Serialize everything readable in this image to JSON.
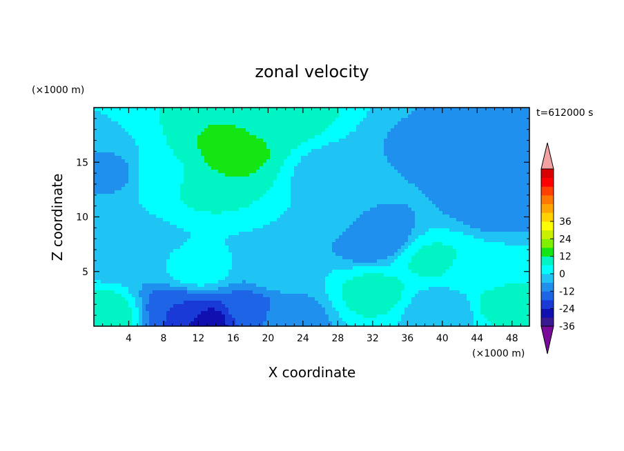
{
  "chart_data": {
    "type": "heatmap",
    "title": "zonal velocity",
    "xlabel": "X coordinate",
    "ylabel": "Z coordinate",
    "x_unit_label": "(×1000 m)",
    "y_unit_label": "(×1000 m)",
    "time_label": "t=612000 s",
    "xlim": [
      0,
      50
    ],
    "ylim": [
      0,
      20
    ],
    "x_ticks": [
      4,
      8,
      12,
      16,
      20,
      24,
      28,
      32,
      36,
      40,
      44,
      48
    ],
    "y_ticks": [
      5,
      10,
      15
    ],
    "colorbar": {
      "min": -42,
      "max": 42,
      "step": 6,
      "tick_labels": [
        "36",
        "24",
        "12",
        "0",
        "-12",
        "-24",
        "-36"
      ],
      "tick_values": [
        36,
        24,
        12,
        0,
        -12,
        -24,
        -36
      ],
      "colors": [
        "#7a0a9a",
        "#3a1a90",
        "#1010b0",
        "#1a3ad8",
        "#1e64e6",
        "#2090ee",
        "#20c4f4",
        "#00ffff",
        "#00f4c4",
        "#14e614",
        "#80f000",
        "#c8f000",
        "#ffff00",
        "#ffd200",
        "#ffa500",
        "#ff7800",
        "#ff4000",
        "#ff0000",
        "#d80000",
        "#f2a2a2"
      ]
    },
    "features": [
      {
        "x": 14,
        "z": 14,
        "u": 12
      },
      {
        "x": 16,
        "z": 16,
        "u": 14
      },
      {
        "x": 22,
        "z": 19,
        "u": 8
      },
      {
        "x": 8,
        "z": 14,
        "u": 5
      },
      {
        "x": 2,
        "z": 14,
        "u": -7
      },
      {
        "x": 2,
        "z": 7,
        "u": -6
      },
      {
        "x": 1,
        "z": 1,
        "u": 10
      },
      {
        "x": 13,
        "z": 0.5,
        "u": -26
      },
      {
        "x": 10,
        "z": 1.5,
        "u": -18
      },
      {
        "x": 18,
        "z": 1.5,
        "u": -14
      },
      {
        "x": 22,
        "z": 1,
        "u": -10
      },
      {
        "x": 28,
        "z": 14,
        "u": -4
      },
      {
        "x": 32,
        "z": 8,
        "u": -12
      },
      {
        "x": 32,
        "z": 3,
        "u": 8
      },
      {
        "x": 39,
        "z": 6,
        "u": 7
      },
      {
        "x": 40,
        "z": 1.5,
        "u": -5
      },
      {
        "x": 46,
        "z": 11,
        "u": -9
      },
      {
        "x": 48,
        "z": 18,
        "u": -10
      },
      {
        "x": 47,
        "z": 2,
        "u": 8
      },
      {
        "x": 22,
        "z": 5,
        "u": 0
      },
      {
        "x": 12,
        "z": 5,
        "u": 2
      },
      {
        "x": 26,
        "z": 10,
        "u": 0
      },
      {
        "x": 38,
        "z": 16,
        "u": -7
      },
      {
        "x": 44,
        "z": 5,
        "u": 3
      }
    ]
  }
}
